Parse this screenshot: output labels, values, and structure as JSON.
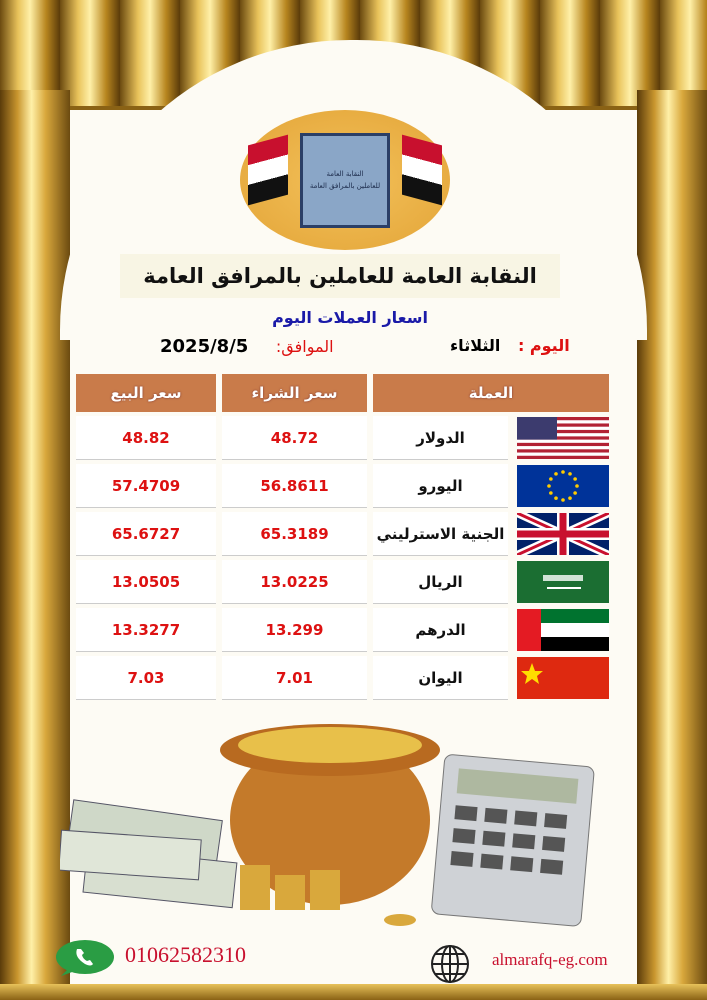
{
  "logo": {
    "line1": "النقابة العامة",
    "line2": "للعاملين بالمرافق العامة"
  },
  "header": {
    "title": "النقابة العامة للعاملين بالمرافق العامة",
    "subtitle": "اسعار العملات اليوم",
    "day_label": "اليوم :",
    "day_value": "الثلاثاء",
    "date_label": "الموافق:",
    "date_value": "2025/8/5"
  },
  "table": {
    "headers": {
      "currency": "العملة",
      "buy": "سعر الشراء",
      "sell": "سعر البيع"
    },
    "rows": [
      {
        "name": "الدولار",
        "flag": "us-flag",
        "buy": "48.72",
        "sell": "48.82"
      },
      {
        "name": "اليورو",
        "flag": "eu-flag",
        "buy": "56.8611",
        "sell": "57.4709"
      },
      {
        "name": "الجنية الاسترليني",
        "flag": "uk-flag",
        "buy": "65.3189",
        "sell": "65.6727"
      },
      {
        "name": "الريال",
        "flag": "saudi-flag",
        "buy": "13.0225",
        "sell": "13.0505"
      },
      {
        "name": "الدرهم",
        "flag": "uae-flag",
        "buy": "13.299",
        "sell": "13.3277"
      },
      {
        "name": "اليوان",
        "flag": "china-flag",
        "buy": "7.01",
        "sell": "7.03"
      }
    ]
  },
  "footer": {
    "phone": "01062582310",
    "website": "almarafq-eg.com",
    "phone_icon": "whatsapp-icon",
    "web_icon": "globe-icon"
  },
  "colors": {
    "header_bg": "#c97b4a",
    "value": "#dd1111",
    "subtitle": "#1a1aa8",
    "gold": "#d9a83c"
  }
}
